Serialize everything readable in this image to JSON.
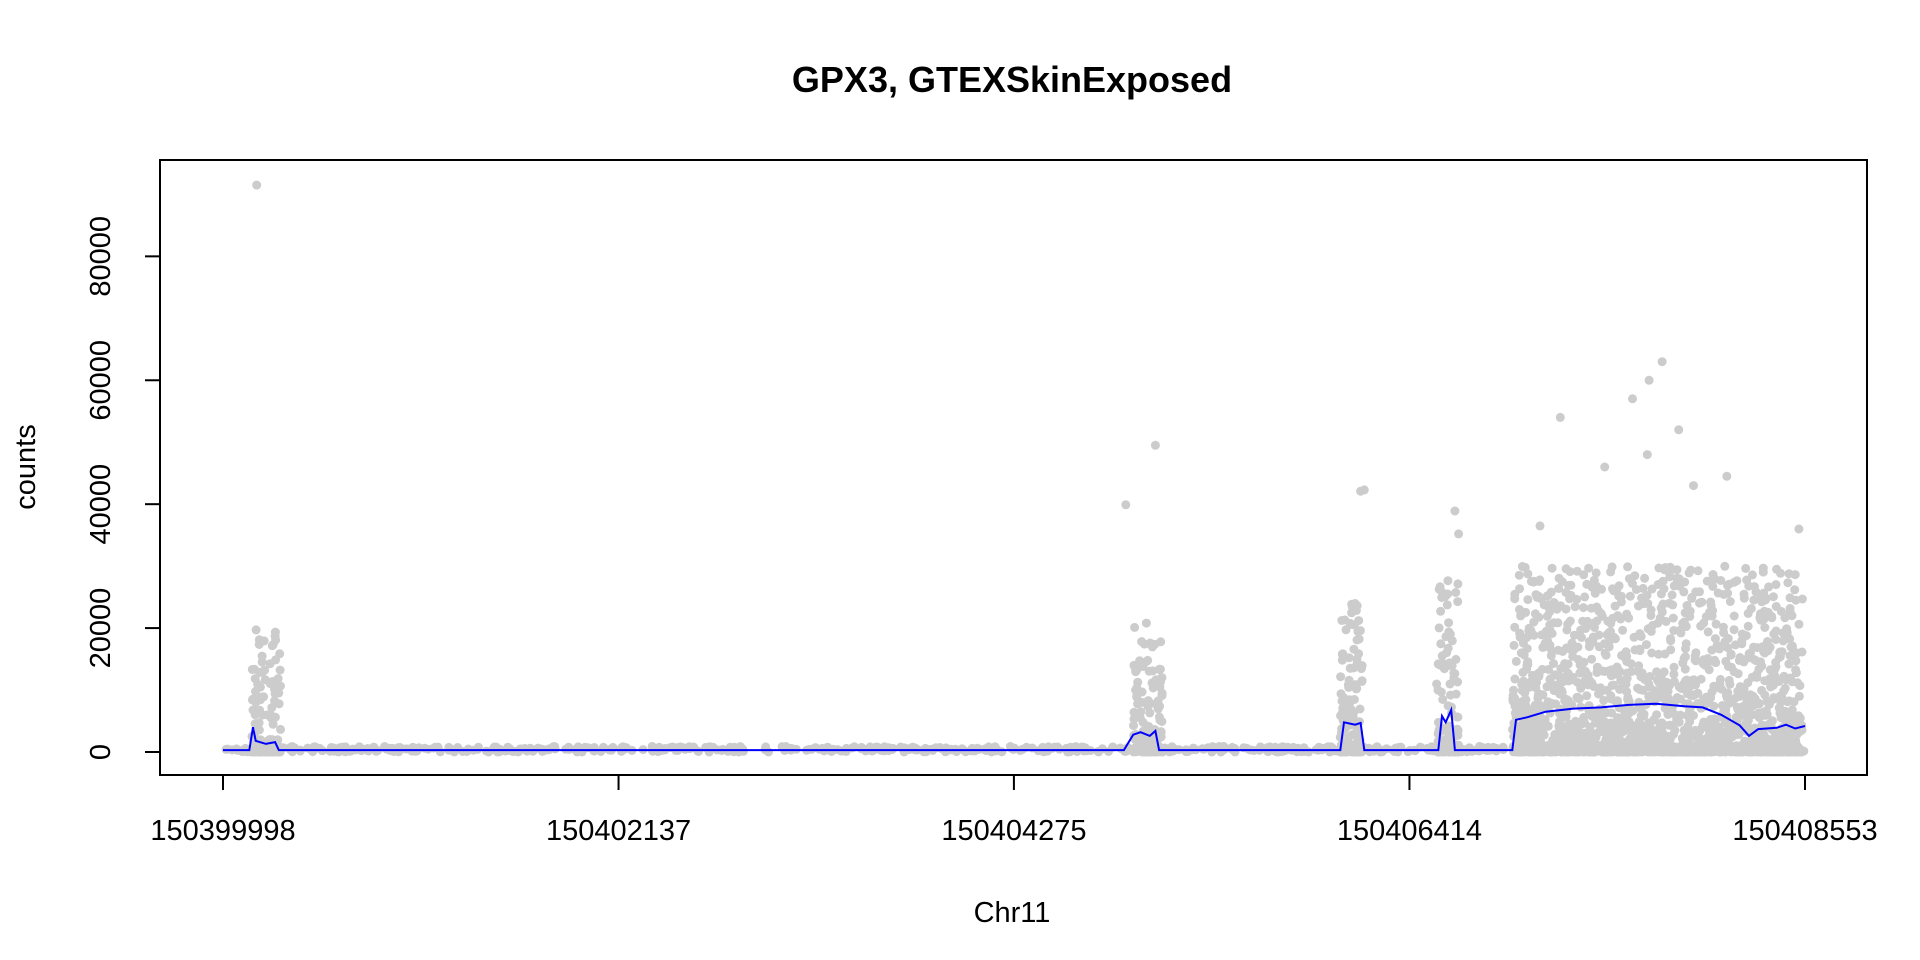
{
  "chart_data": {
    "type": "scatter",
    "title": "GPX3, GTEXSkinExposed",
    "xlabel": "Chr11",
    "ylabel": "counts",
    "xlim": [
      150399998,
      150408553
    ],
    "ylim": [
      0,
      92000
    ],
    "x_ticks": [
      150399998,
      150402137,
      150404275,
      150406414,
      150408553
    ],
    "x_tick_labels": [
      "150399998",
      "150402137",
      "150404275",
      "150406414",
      "150408553"
    ],
    "y_ticks": [
      0,
      20000,
      40000,
      60000,
      80000
    ],
    "y_tick_labels": [
      "0",
      "20000",
      "40000",
      "60000",
      "80000"
    ],
    "grid": false,
    "colors": {
      "points": "#cccccc",
      "line": "#0000ff",
      "axis": "#000000"
    },
    "series": [
      {
        "kind": "points",
        "clusters": [
          {
            "x": [
              150400150,
              150400310
            ],
            "max": 20000,
            "count": 140
          },
          {
            "x": [
              150404920,
              150405080
            ],
            "max": 21000,
            "count": 140
          },
          {
            "x": [
              150406040,
              150406160
            ],
            "max": 24000,
            "count": 130
          },
          {
            "x": [
              150406560,
              150406680
            ],
            "max": 28000,
            "count": 110
          },
          {
            "x": [
              150406970,
              150408540
            ],
            "max": 30000,
            "count": 1800
          }
        ],
        "outliers": [
          {
            "x": 150400180,
            "y": 91500
          },
          {
            "x": 150400280,
            "y": 18700
          },
          {
            "x": 150404880,
            "y": 39900
          },
          {
            "x": 150405040,
            "y": 49500
          },
          {
            "x": 150406150,
            "y": 42100
          },
          {
            "x": 150406170,
            "y": 42300
          },
          {
            "x": 150406660,
            "y": 38900
          },
          {
            "x": 150406680,
            "y": 35200
          },
          {
            "x": 150407230,
            "y": 54000
          },
          {
            "x": 150407470,
            "y": 46000
          },
          {
            "x": 150407620,
            "y": 57000
          },
          {
            "x": 150407710,
            "y": 60000
          },
          {
            "x": 150407780,
            "y": 63000
          },
          {
            "x": 150407870,
            "y": 52000
          },
          {
            "x": 150407950,
            "y": 43000
          },
          {
            "x": 150408130,
            "y": 44500
          },
          {
            "x": 150408520,
            "y": 36000
          },
          {
            "x": 150407120,
            "y": 36500
          },
          {
            "x": 150407700,
            "y": 48000
          }
        ]
      },
      {
        "kind": "line",
        "points": [
          [
            150399998,
            300
          ],
          [
            150400140,
            300
          ],
          [
            150400160,
            4000
          ],
          [
            150400175,
            1800
          ],
          [
            150400230,
            1300
          ],
          [
            150400280,
            1600
          ],
          [
            150400300,
            300
          ],
          [
            150404870,
            300
          ],
          [
            150404920,
            2800
          ],
          [
            150404960,
            3200
          ],
          [
            150405010,
            2600
          ],
          [
            150405040,
            3400
          ],
          [
            150405060,
            300
          ],
          [
            150406040,
            300
          ],
          [
            150406060,
            4800
          ],
          [
            150406120,
            4400
          ],
          [
            150406150,
            4700
          ],
          [
            150406170,
            300
          ],
          [
            150406570,
            300
          ],
          [
            150406590,
            5800
          ],
          [
            150406610,
            4800
          ],
          [
            150406640,
            6800
          ],
          [
            150406660,
            300
          ],
          [
            150406970,
            300
          ],
          [
            150406990,
            5200
          ],
          [
            150407050,
            5600
          ],
          [
            150407150,
            6500
          ],
          [
            150407300,
            7000
          ],
          [
            150407450,
            7200
          ],
          [
            150407600,
            7600
          ],
          [
            150407750,
            7800
          ],
          [
            150407900,
            7400
          ],
          [
            150408000,
            7200
          ],
          [
            150408100,
            6000
          ],
          [
            150408200,
            4300
          ],
          [
            150408250,
            2600
          ],
          [
            150408300,
            3700
          ],
          [
            150408400,
            3900
          ],
          [
            150408450,
            4400
          ],
          [
            150408500,
            3800
          ],
          [
            150408553,
            4200
          ]
        ]
      }
    ]
  }
}
